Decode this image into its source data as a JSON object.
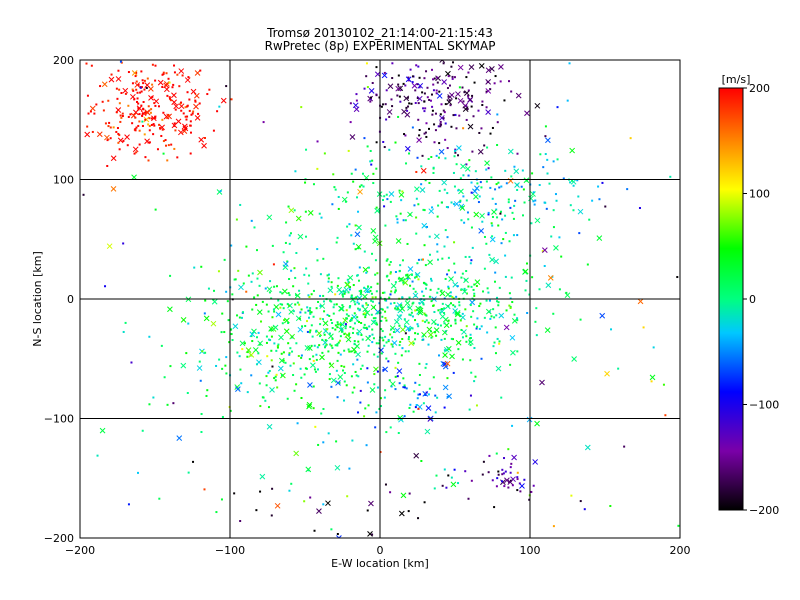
{
  "chart_data": {
    "type": "scatter",
    "title": "Tromsø 20130102_21:14:00-21:15:43",
    "subtitle": "RwPretec (8p) EXPERIMENTAL SKYMAP",
    "xlabel": "E-W location [km]",
    "ylabel": "N-S location [km]",
    "xlim": [
      -200,
      200
    ],
    "ylim": [
      -200,
      200
    ],
    "x_ticks": [
      "−200",
      "−100",
      "0",
      "100",
      "200"
    ],
    "y_ticks": [
      "−200",
      "−100",
      "0",
      "100",
      "200"
    ],
    "grid": true,
    "colorbar": {
      "label": "[m/s]",
      "range": [
        -200,
        200
      ],
      "ticks": [
        "200",
        "100",
        "0",
        "−100",
        "−200"
      ],
      "colormap": "rainbow: black → purple → blue → cyan → green → yellow → red"
    },
    "clusters": [
      {
        "x": -155,
        "y": 160,
        "sx": 22,
        "sy": 20,
        "n": 260,
        "vel": 200
      },
      {
        "x": 35,
        "y": 165,
        "sx": 28,
        "sy": 20,
        "n": 230,
        "vel": -160
      },
      {
        "x": 70,
        "y": 85,
        "sx": 38,
        "sy": 24,
        "n": 200,
        "vel": -20
      },
      {
        "x": 0,
        "y": 75,
        "sx": 40,
        "sy": 30,
        "n": 120,
        "vel": 20
      },
      {
        "x": 20,
        "y": -8,
        "sx": 40,
        "sy": 22,
        "n": 520,
        "vel": 10
      },
      {
        "x": -45,
        "y": -30,
        "sx": 40,
        "sy": 30,
        "n": 380,
        "vel": 25
      },
      {
        "x": 20,
        "y": -75,
        "sx": 25,
        "sy": 15,
        "n": 60,
        "vel": -50
      },
      {
        "x": 80,
        "y": -150,
        "sx": 10,
        "sy": 10,
        "n": 40,
        "vel": -140
      },
      {
        "x": -60,
        "y": -80,
        "sx": 100,
        "sy": 70,
        "n": 120,
        "vel": 0
      },
      {
        "x": 0,
        "y": -170,
        "sx": 60,
        "sy": 20,
        "n": 30,
        "vel": -200
      },
      {
        "x": 0,
        "y": 20,
        "sx": 190,
        "sy": 190,
        "n": 200,
        "vel": 0
      }
    ]
  }
}
